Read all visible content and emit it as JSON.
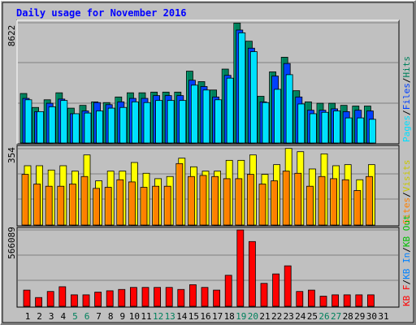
{
  "title": "Daily usage for November 2016",
  "colors": {
    "background": "#c0c0c0",
    "title": "#0000ff",
    "hits": "#00805c",
    "files": "#0040ff",
    "pages": "#00e0ff",
    "visits": "#ffff00",
    "sites": "#ff8000",
    "kb_f": "#ff0000",
    "kb_in": "#0080ff",
    "kb_out": "#00c000",
    "weekend_day": "#00805c",
    "weekday_day": "#000000"
  },
  "chart_data": [
    {
      "type": "bar",
      "panel": "hits",
      "y_max_label": "8622",
      "ylim": [
        0,
        8622
      ],
      "legend": [
        "Pages",
        "Files",
        "Hits"
      ],
      "categories": [
        "1",
        "2",
        "3",
        "4",
        "5",
        "6",
        "7",
        "8",
        "9",
        "10",
        "11",
        "12",
        "13",
        "14",
        "15",
        "16",
        "17",
        "18",
        "19",
        "20",
        "21",
        "22",
        "23",
        "24",
        "25",
        "26",
        "27",
        "28",
        "29",
        "30",
        "31"
      ],
      "weekend_days": [
        5,
        6,
        12,
        13,
        19,
        20,
        26,
        27
      ],
      "series": [
        {
          "name": "Hits",
          "values": [
            3550,
            2550,
            3100,
            3600,
            2500,
            2700,
            2950,
            2900,
            3300,
            3600,
            3600,
            3650,
            3650,
            3650,
            5150,
            4400,
            3800,
            5300,
            8600,
            7300,
            3350,
            5100,
            6150,
            3750,
            2950,
            2850,
            2850,
            2700,
            2650,
            2650,
            null
          ]
        },
        {
          "name": "Files",
          "values": [
            3200,
            2250,
            2850,
            3150,
            2100,
            2300,
            2900,
            2750,
            2950,
            3200,
            3200,
            3400,
            3400,
            3400,
            4500,
            4050,
            3300,
            4850,
            8100,
            6800,
            2950,
            4800,
            5700,
            3300,
            2350,
            2350,
            2450,
            2250,
            2350,
            2300,
            null
          ]
        },
        {
          "name": "Pages",
          "values": [
            3100,
            2250,
            2600,
            3050,
            2100,
            2150,
            2300,
            2500,
            2550,
            2950,
            2900,
            3050,
            3050,
            3050,
            4150,
            3800,
            3100,
            4650,
            7900,
            6550,
            2900,
            3850,
            4900,
            2800,
            2100,
            2200,
            2300,
            1800,
            1800,
            1700,
            null
          ]
        }
      ]
    },
    {
      "type": "bar",
      "panel": "visits",
      "y_max_label": "354",
      "ylim": [
        0,
        354
      ],
      "legend": [
        "Sites",
        "Visits"
      ],
      "categories": [
        "1",
        "2",
        "3",
        "4",
        "5",
        "6",
        "7",
        "8",
        "9",
        "10",
        "11",
        "12",
        "13",
        "14",
        "15",
        "16",
        "17",
        "18",
        "19",
        "20",
        "21",
        "22",
        "23",
        "24",
        "25",
        "26",
        "27",
        "28",
        "29",
        "30",
        "31"
      ],
      "series": [
        {
          "name": "Visits",
          "values": [
            275,
            275,
            255,
            275,
            250,
            325,
            205,
            250,
            250,
            290,
            240,
            215,
            225,
            310,
            270,
            250,
            250,
            300,
            300,
            325,
            235,
            280,
            355,
            340,
            260,
            330,
            275,
            280,
            210,
            280,
            null
          ]
        },
        {
          "name": "Sites",
          "values": [
            235,
            190,
            180,
            180,
            190,
            225,
            170,
            175,
            210,
            200,
            175,
            180,
            180,
            285,
            225,
            230,
            225,
            215,
            215,
            235,
            190,
            205,
            250,
            240,
            180,
            225,
            215,
            210,
            160,
            225,
            null
          ]
        }
      ]
    },
    {
      "type": "bar",
      "panel": "kbytes",
      "y_max_label": "566089",
      "ylim": [
        0,
        566089
      ],
      "legend": [
        "KB F",
        "KB In",
        "KB Out"
      ],
      "categories": [
        "1",
        "2",
        "3",
        "4",
        "5",
        "6",
        "7",
        "8",
        "9",
        "10",
        "11",
        "12",
        "13",
        "14",
        "15",
        "16",
        "17",
        "18",
        "19",
        "20",
        "21",
        "22",
        "23",
        "24",
        "25",
        "26",
        "27",
        "28",
        "29",
        "30",
        "31"
      ],
      "series": [
        {
          "name": "KB F",
          "values": [
            120000,
            65000,
            110000,
            145000,
            85000,
            85000,
            105000,
            115000,
            125000,
            140000,
            140000,
            140000,
            140000,
            125000,
            160000,
            140000,
            120000,
            230000,
            566000,
            480000,
            170000,
            240000,
            300000,
            110000,
            120000,
            75000,
            85000,
            85000,
            85000,
            85000,
            null
          ]
        }
      ]
    }
  ]
}
